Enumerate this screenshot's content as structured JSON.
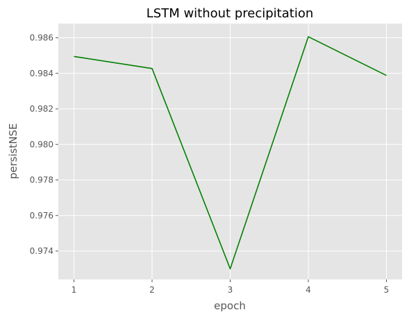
{
  "chart_data": {
    "type": "line",
    "title": "LSTM without precipitation",
    "xlabel": "epoch",
    "ylabel": "persistNSE",
    "x": [
      1,
      2,
      3,
      4,
      5
    ],
    "x_ticks": [
      "1",
      "2",
      "3",
      "4",
      "5"
    ],
    "y_ticks": [
      "0.974",
      "0.976",
      "0.978",
      "0.980",
      "0.982",
      "0.984",
      "0.986"
    ],
    "xlim": [
      0.8,
      5.2
    ],
    "ylim": [
      0.9724,
      0.9868
    ],
    "grid": true,
    "series": [
      {
        "values": [
          0.98495,
          0.98427,
          0.973,
          0.98606,
          0.98388
        ],
        "color": "#008000"
      }
    ],
    "colors": {
      "plot_background": "#e5e5e5",
      "grid": "#ffffff",
      "tick_text": "#555555"
    }
  }
}
